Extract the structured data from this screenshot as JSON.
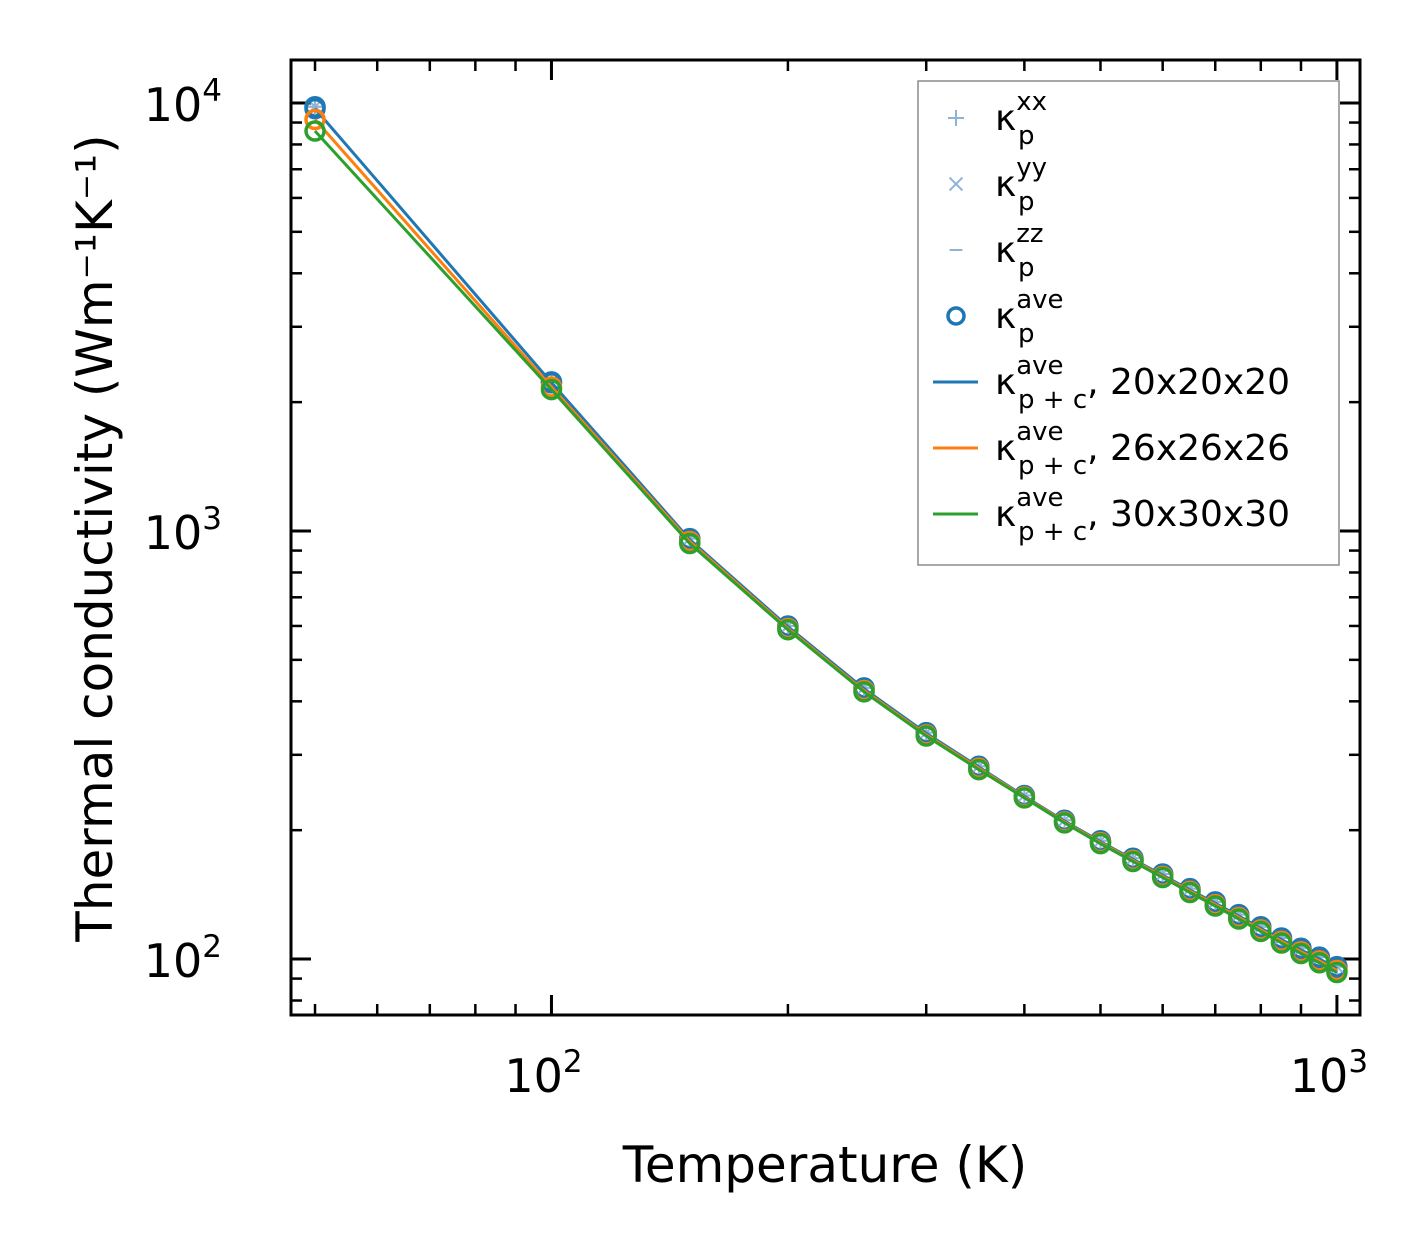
{
  "chart_data": {
    "type": "line",
    "xscale": "log",
    "yscale": "log",
    "xlabel": "Temperature (K)",
    "ylabel": "Thermal conductivity (Wm⁻¹K⁻¹)",
    "xlim": [
      46.6,
      1070
    ],
    "ylim": [
      74,
      12600
    ],
    "x_ticks": [
      {
        "base": "10",
        "exp": "2",
        "value": 100
      },
      {
        "base": "10",
        "exp": "3",
        "value": 1000
      }
    ],
    "y_ticks": [
      {
        "base": "10",
        "exp": "2",
        "value": 100
      },
      {
        "base": "10",
        "exp": "3",
        "value": 1000
      },
      {
        "base": "10",
        "exp": "4",
        "value": 10000
      }
    ],
    "x": [
      50,
      100,
      150,
      200,
      250,
      300,
      350,
      400,
      450,
      500,
      550,
      600,
      650,
      700,
      750,
      800,
      850,
      900,
      950,
      1000
    ],
    "series": [
      {
        "name": "κ_p^xx",
        "kind": "marker",
        "marker": "plus",
        "color": "#8fb3d5",
        "values": [
          9800,
          2230,
          960,
          600,
          430,
          338,
          282,
          241,
          211,
          189,
          172,
          158,
          146,
          136,
          127,
          119,
          112,
          106,
          101,
          96
        ]
      },
      {
        "name": "κ_p^yy",
        "kind": "marker",
        "marker": "x",
        "color": "#8fb3d5",
        "values": [
          9800,
          2230,
          960,
          600,
          430,
          338,
          282,
          241,
          211,
          189,
          172,
          158,
          146,
          136,
          127,
          119,
          112,
          106,
          101,
          96
        ]
      },
      {
        "name": "κ_p^zz",
        "kind": "marker",
        "marker": "dash",
        "color": "#8fb3d5",
        "values": [
          9800,
          2230,
          960,
          600,
          430,
          338,
          282,
          241,
          211,
          189,
          172,
          158,
          146,
          136,
          127,
          119,
          112,
          106,
          101,
          96
        ]
      },
      {
        "name": "κ_p^ave",
        "kind": "marker",
        "marker": "circle",
        "color": "#1f77b4",
        "values": [
          9800,
          2230,
          960,
          600,
          430,
          338,
          282,
          241,
          211,
          189,
          172,
          158,
          146,
          136,
          127,
          119,
          112,
          106,
          101,
          96
        ]
      },
      {
        "name": "κ_p+c^ave, 20x20x20",
        "kind": "line+circle",
        "color": "#1f77b4",
        "values": [
          9700,
          2220,
          955,
          598,
          428,
          337,
          281,
          240,
          210,
          188,
          171,
          157,
          145,
          135,
          126,
          118,
          111,
          105,
          100,
          95
        ]
      },
      {
        "name": "κ_p+c^ave, 26x26x26",
        "kind": "line+circle",
        "color": "#ff7f0e",
        "values": [
          9150,
          2170,
          945,
          592,
          424,
          334,
          279,
          239,
          209,
          187,
          170,
          156,
          144,
          134,
          125,
          117,
          110,
          104,
          99,
          94
        ]
      },
      {
        "name": "κ_p+c^ave, 30x30x30",
        "kind": "line+circle",
        "color": "#2ca02c",
        "values": [
          8600,
          2140,
          935,
          588,
          421,
          332,
          277,
          238,
          208,
          186,
          169,
          155,
          143,
          133,
          124,
          116,
          109,
          103,
          98,
          93
        ]
      }
    ],
    "legend": {
      "position": "top-right",
      "items": [
        {
          "base": "κ",
          "sup": "xx",
          "sub": "p",
          "suffix": ""
        },
        {
          "base": "κ",
          "sup": "yy",
          "sub": "p",
          "suffix": ""
        },
        {
          "base": "κ",
          "sup": "zz",
          "sub": "p",
          "suffix": ""
        },
        {
          "base": "κ",
          "sup": "ave",
          "sub": "p",
          "suffix": ""
        },
        {
          "base": "κ",
          "sup": "ave",
          "sub": "p + c",
          "suffix": ", 20x20x20"
        },
        {
          "base": "κ",
          "sup": "ave",
          "sub": "p + c",
          "suffix": ", 26x26x26"
        },
        {
          "base": "κ",
          "sup": "ave",
          "sub": "p + c",
          "suffix": ", 30x30x30"
        }
      ]
    }
  }
}
